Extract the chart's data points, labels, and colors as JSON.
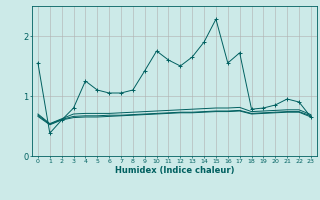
{
  "title": "",
  "xlabel": "Humidex (Indice chaleur)",
  "ylabel": "",
  "background_color": "#cceae8",
  "grid_color": "#b0b0b0",
  "line_color": "#006060",
  "x_values": [
    0,
    1,
    2,
    3,
    4,
    5,
    6,
    7,
    8,
    9,
    10,
    11,
    12,
    13,
    14,
    15,
    16,
    17,
    18,
    19,
    20,
    21,
    22,
    23
  ],
  "line1": [
    1.55,
    0.38,
    0.6,
    0.8,
    1.25,
    1.1,
    1.05,
    1.05,
    1.1,
    1.42,
    1.75,
    1.6,
    1.5,
    1.65,
    1.9,
    2.28,
    1.55,
    1.72,
    0.78,
    0.8,
    0.85,
    0.95,
    0.9,
    0.65
  ],
  "line2": [
    0.7,
    0.54,
    0.62,
    0.7,
    0.71,
    0.71,
    0.71,
    0.72,
    0.73,
    0.74,
    0.75,
    0.76,
    0.77,
    0.78,
    0.79,
    0.8,
    0.8,
    0.81,
    0.74,
    0.75,
    0.76,
    0.77,
    0.77,
    0.69
  ],
  "line3": [
    0.68,
    0.53,
    0.61,
    0.66,
    0.67,
    0.67,
    0.68,
    0.68,
    0.69,
    0.7,
    0.71,
    0.72,
    0.73,
    0.73,
    0.74,
    0.75,
    0.75,
    0.76,
    0.71,
    0.72,
    0.73,
    0.74,
    0.74,
    0.67
  ],
  "line4": [
    0.66,
    0.52,
    0.6,
    0.64,
    0.65,
    0.65,
    0.66,
    0.67,
    0.68,
    0.69,
    0.7,
    0.71,
    0.72,
    0.72,
    0.73,
    0.74,
    0.74,
    0.75,
    0.7,
    0.71,
    0.72,
    0.73,
    0.73,
    0.65
  ],
  "ylim": [
    0,
    2.5
  ],
  "xlim": [
    -0.5,
    23.5
  ],
  "yticks": [
    0,
    1,
    2
  ],
  "xticks": [
    0,
    1,
    2,
    3,
    4,
    5,
    6,
    7,
    8,
    9,
    10,
    11,
    12,
    13,
    14,
    15,
    16,
    17,
    18,
    19,
    20,
    21,
    22,
    23
  ]
}
